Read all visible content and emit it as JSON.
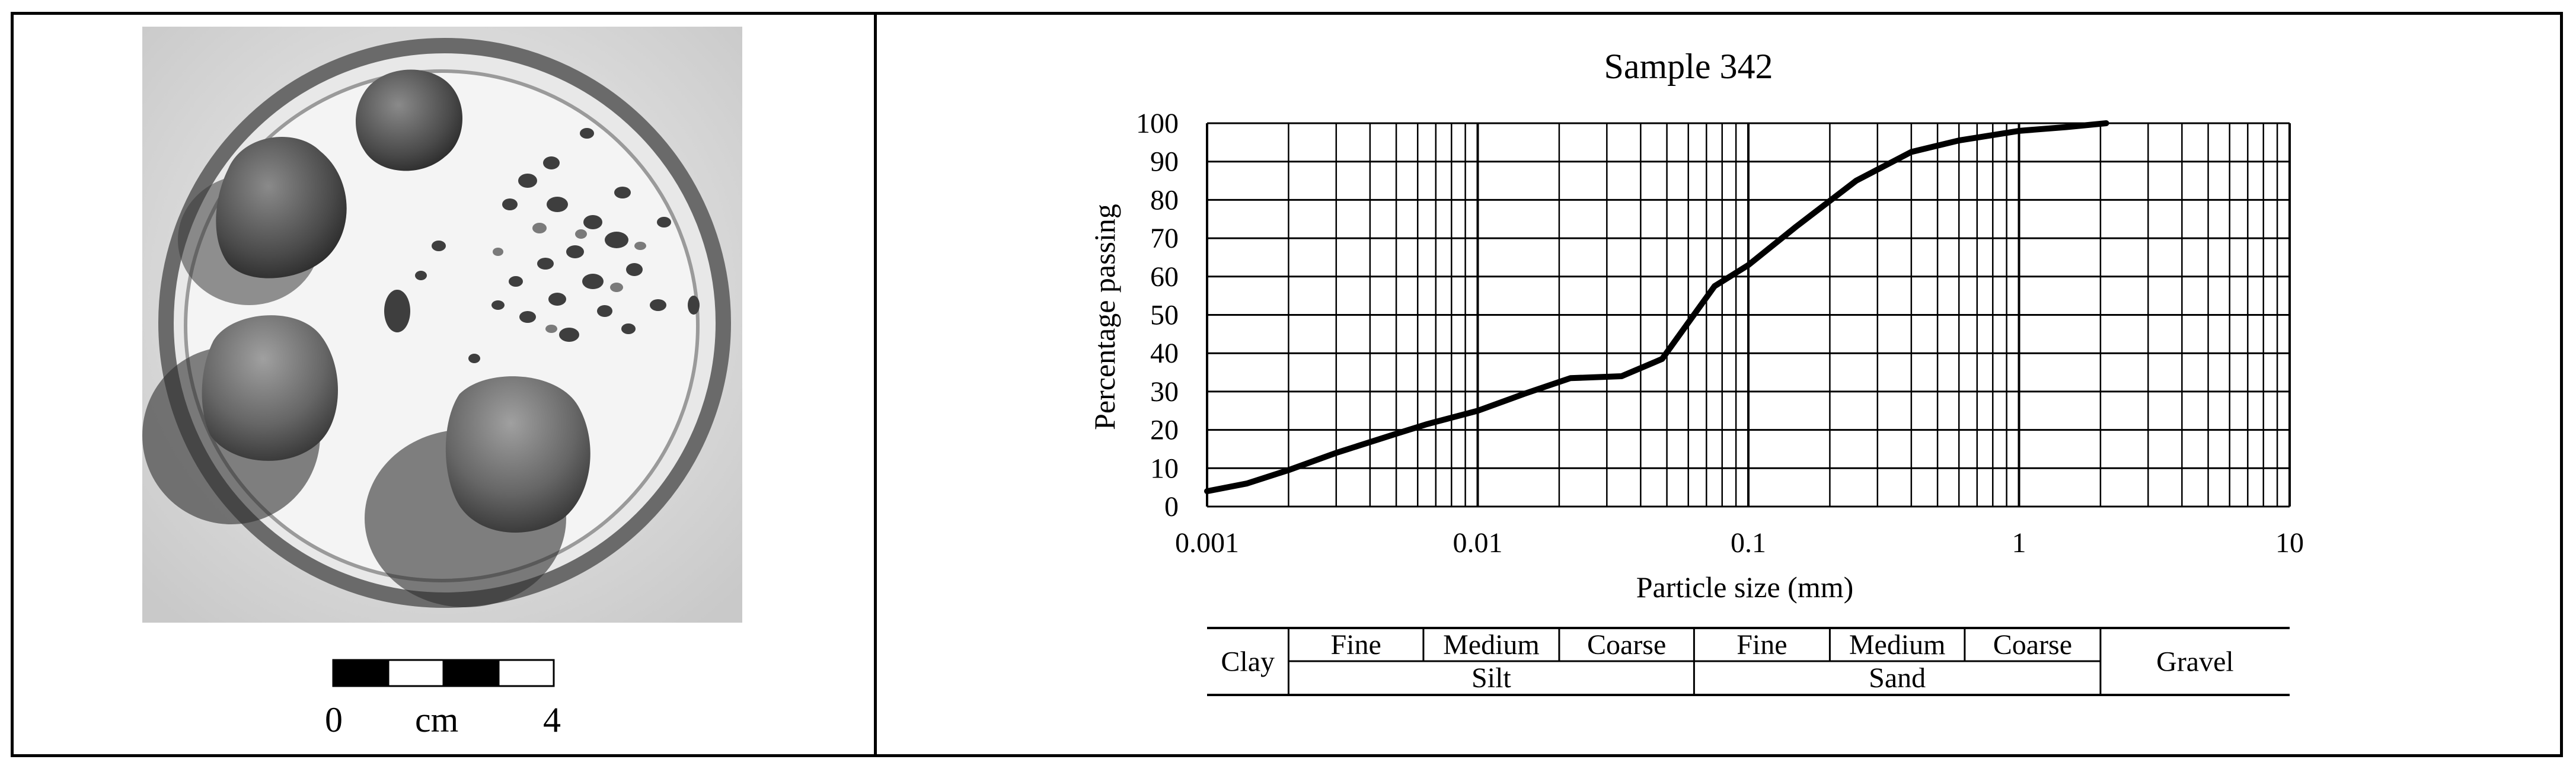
{
  "photo": {
    "scale_labels": [
      "0",
      "cm",
      "4"
    ]
  },
  "chart_data": {
    "type": "line",
    "title": "Sample 342",
    "xlabel": "Particle size (mm)",
    "ylabel": "Percentage passing",
    "xscale": "log",
    "xlim": [
      0.001,
      10
    ],
    "ylim": [
      0,
      100
    ],
    "grid": true,
    "x_ticks": [
      "0.001",
      "0.01",
      "0.1",
      "1",
      "10"
    ],
    "y_ticks": [
      "0",
      "10",
      "20",
      "30",
      "40",
      "50",
      "60",
      "70",
      "80",
      "90",
      "100"
    ],
    "series": [
      {
        "x": [
          0.001,
          0.0014,
          0.002,
          0.003,
          0.005,
          0.0065,
          0.01,
          0.015,
          0.022,
          0.034,
          0.048,
          0.075,
          0.1,
          0.15,
          0.25,
          0.4,
          0.6,
          1,
          1.5,
          2.1
        ],
        "y": [
          4,
          6,
          9.5,
          14,
          19,
          21.5,
          25,
          29.5,
          33.5,
          34,
          38.5,
          57.5,
          63,
          73,
          85,
          92.5,
          95.5,
          98,
          99,
          100
        ]
      }
    ],
    "classification": {
      "main": [
        {
          "label": "Clay",
          "from": 0.001,
          "to": 0.002
        },
        {
          "label": "Silt",
          "from": 0.002,
          "to": 0.063
        },
        {
          "label": "Sand",
          "from": 0.063,
          "to": 2
        },
        {
          "label": "Gravel",
          "from": 2,
          "to": 10
        }
      ],
      "sub": [
        {
          "label": "Fine",
          "from": 0.002,
          "to": 0.0063
        },
        {
          "label": "Medium",
          "from": 0.0063,
          "to": 0.02
        },
        {
          "label": "Coarse",
          "from": 0.02,
          "to": 0.063
        },
        {
          "label": "Fine",
          "from": 0.063,
          "to": 0.2
        },
        {
          "label": "Medium",
          "from": 0.2,
          "to": 0.63
        },
        {
          "label": "Coarse",
          "from": 0.63,
          "to": 2
        }
      ]
    },
    "colors": {
      "line": "#000000",
      "grid": "#000000"
    }
  }
}
